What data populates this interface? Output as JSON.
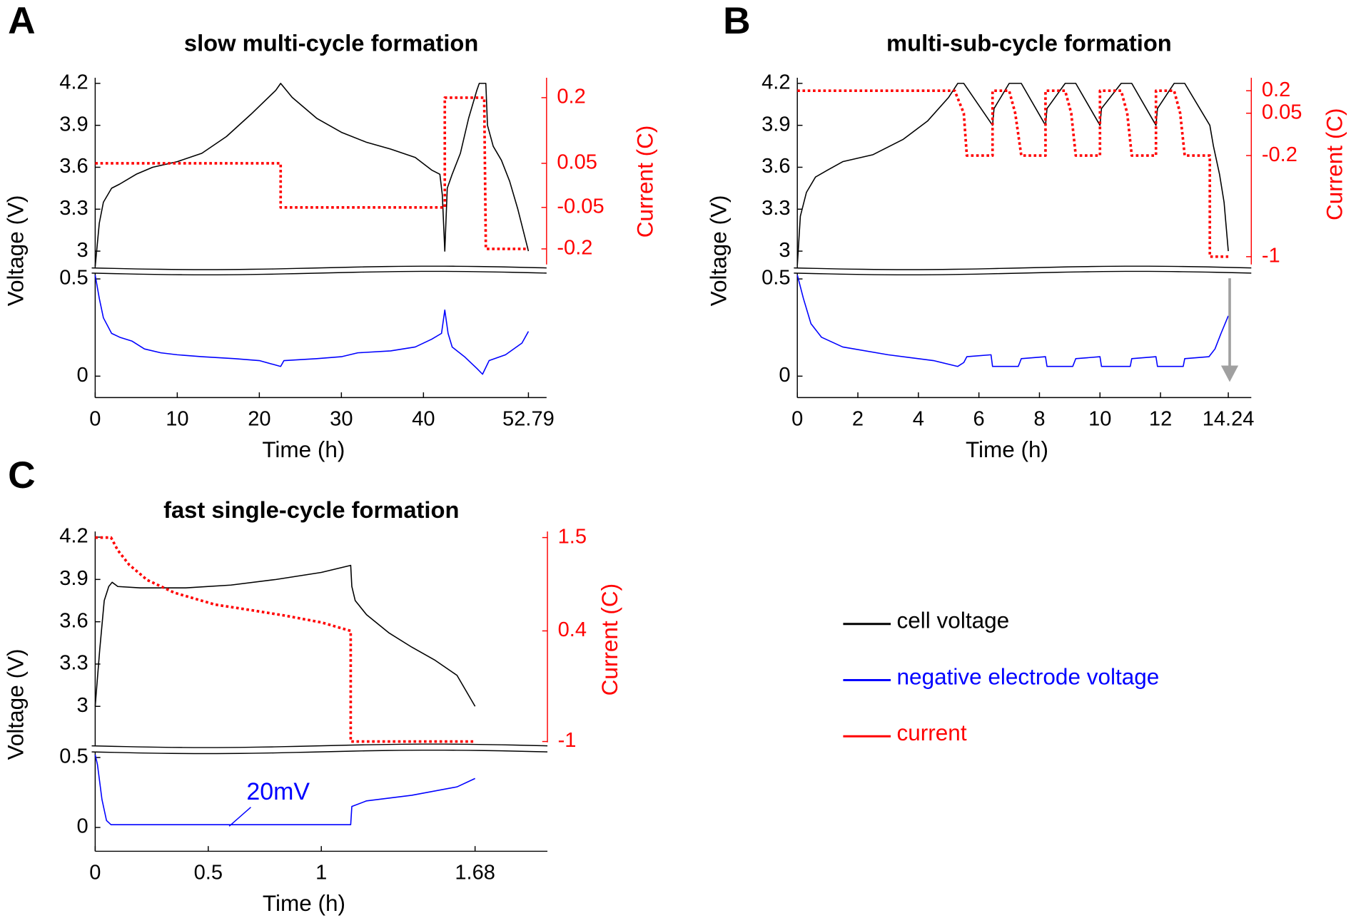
{
  "chart_data": [
    {
      "type": "line",
      "panel": "A",
      "title": "slow multi-cycle formation",
      "xlabel": "Time (h)",
      "ylabel": "Voltage (V)",
      "y2label": "Current (C)",
      "xlim": [
        0,
        55
      ],
      "xticks": [
        0,
        10,
        20,
        30,
        40,
        52.79
      ],
      "ylim": [
        2.88,
        4.24
      ],
      "yticks": [
        3,
        3.3,
        3.6,
        3.9,
        4.2
      ],
      "ylim_lower": [
        -0.11,
        0.53
      ],
      "yticks_lower": [
        0,
        0.5
      ],
      "y2ticks": [
        0.2,
        0.05,
        -0.05,
        -0.2
      ],
      "legend": true,
      "series": [
        {
          "name": "cell voltage",
          "color": "#000000",
          "axis": "y",
          "x": [
            0,
            0.5,
            1,
            2,
            3,
            5,
            7,
            10,
            13,
            16,
            19,
            22,
            22.6,
            24,
            27,
            30,
            33,
            36,
            39,
            41,
            42,
            42.3,
            42.6,
            42.9,
            43.5,
            44.5,
            45.5,
            46.5,
            46.8,
            47.6,
            47.8,
            48.5,
            49.5,
            50.5,
            51.5,
            52.79
          ],
          "values": [
            2.89,
            3.2,
            3.35,
            3.45,
            3.48,
            3.55,
            3.6,
            3.64,
            3.7,
            3.82,
            3.98,
            4.15,
            4.2,
            4.1,
            3.95,
            3.85,
            3.78,
            3.73,
            3.67,
            3.58,
            3.55,
            3.4,
            3.0,
            3.45,
            3.55,
            3.7,
            3.95,
            4.15,
            4.2,
            4.2,
            3.9,
            3.75,
            3.65,
            3.5,
            3.3,
            3.0
          ]
        },
        {
          "name": "negative electrode voltage",
          "color": "#0000ff",
          "axis": "y_lower",
          "x": [
            0,
            0.5,
            1,
            2,
            3,
            4.5,
            6,
            8,
            10,
            13,
            17,
            20,
            22.6,
            23,
            27,
            30,
            32,
            36,
            39,
            41,
            42.2,
            42.6,
            43,
            43.5,
            45,
            46.5,
            47.2,
            48,
            50,
            52,
            52.79
          ],
          "values": [
            0.52,
            0.4,
            0.3,
            0.22,
            0.2,
            0.18,
            0.14,
            0.12,
            0.11,
            0.1,
            0.09,
            0.08,
            0.05,
            0.08,
            0.09,
            0.1,
            0.12,
            0.13,
            0.15,
            0.19,
            0.22,
            0.34,
            0.22,
            0.15,
            0.1,
            0.04,
            0.01,
            0.08,
            0.11,
            0.17,
            0.23
          ]
        },
        {
          "name": "current",
          "color": "#ff0000",
          "axis": "y2",
          "x": [
            0,
            22.6,
            22.6,
            42.6,
            42.6,
            47.4,
            47.6,
            52.79
          ],
          "values": [
            0.05,
            0.05,
            -0.05,
            -0.05,
            0.2,
            0.2,
            -0.2,
            -0.2
          ]
        }
      ]
    },
    {
      "type": "line",
      "panel": "B",
      "title": "multi-sub-cycle formation",
      "xlabel": "Time (h)",
      "ylabel": "Voltage (V)",
      "y2label": "Current (C)",
      "xlim": [
        0,
        15
      ],
      "xticks": [
        0,
        2,
        4,
        6,
        8,
        10,
        12,
        14.24
      ],
      "ylim": [
        2.88,
        4.24
      ],
      "yticks": [
        3,
        3.3,
        3.6,
        3.9,
        4.2
      ],
      "ylim_lower": [
        -0.11,
        0.53
      ],
      "yticks_lower": [
        0,
        0.5
      ],
      "y2ticks": [
        0.2,
        0.05,
        -0.2,
        -1
      ],
      "legend": false,
      "series": [
        {
          "name": "cell voltage",
          "color": "#000000",
          "axis": "y",
          "x": [
            0,
            0.1,
            0.3,
            0.6,
            1,
            1.5,
            2.5,
            3.5,
            4.3,
            5,
            5.3,
            5.5,
            6.45,
            6.5,
            7.0,
            7.4,
            8.2,
            8.25,
            8.85,
            9.2,
            10.0,
            10.05,
            10.7,
            11.05,
            11.85,
            11.9,
            12.45,
            12.8,
            13.63,
            13.75,
            13.95,
            14.1,
            14.24
          ],
          "values": [
            2.9,
            3.25,
            3.42,
            3.53,
            3.58,
            3.64,
            3.69,
            3.8,
            3.93,
            4.1,
            4.2,
            4.2,
            3.9,
            4.02,
            4.2,
            4.2,
            3.9,
            4.02,
            4.2,
            4.2,
            3.9,
            4.02,
            4.2,
            4.2,
            3.9,
            4.02,
            4.2,
            4.2,
            3.9,
            3.75,
            3.55,
            3.35,
            3.0
          ]
        },
        {
          "name": "negative electrode voltage",
          "color": "#0000ff",
          "axis": "y_lower",
          "x": [
            0,
            0.2,
            0.45,
            0.8,
            1.5,
            3,
            4.5,
            5.3,
            5.5,
            5.6,
            6.4,
            6.45,
            7.3,
            7.4,
            8.2,
            8.25,
            9.1,
            9.2,
            10.0,
            10.05,
            11.0,
            11.05,
            11.85,
            11.9,
            12.75,
            12.8,
            13.6,
            13.8,
            14.0,
            14.24
          ],
          "values": [
            0.52,
            0.4,
            0.27,
            0.2,
            0.15,
            0.11,
            0.08,
            0.05,
            0.07,
            0.1,
            0.11,
            0.05,
            0.05,
            0.09,
            0.1,
            0.05,
            0.05,
            0.09,
            0.1,
            0.05,
            0.05,
            0.09,
            0.1,
            0.05,
            0.05,
            0.09,
            0.1,
            0.14,
            0.22,
            0.31
          ]
        },
        {
          "name": "current",
          "color": "#ff0000",
          "axis": "y2",
          "x": [
            0,
            5.2,
            5.4,
            5.5,
            5.6,
            6.45,
            6.45,
            7.0,
            7.2,
            7.4,
            8.2,
            8.2,
            8.85,
            9.05,
            9.2,
            10.0,
            10.0,
            10.7,
            10.9,
            11.05,
            11.85,
            11.85,
            12.45,
            12.65,
            12.8,
            13.63,
            13.63,
            14.24
          ],
          "values": [
            0.2,
            0.2,
            0.1,
            0.05,
            -0.2,
            -0.2,
            0.2,
            0.2,
            0.05,
            -0.2,
            -0.2,
            0.2,
            0.2,
            0.05,
            -0.2,
            -0.2,
            0.2,
            0.2,
            0.05,
            -0.2,
            -0.2,
            0.2,
            0.2,
            0.05,
            -0.2,
            -0.2,
            -1,
            -1
          ]
        }
      ]
    },
    {
      "type": "line",
      "panel": "C",
      "title": "fast single-cycle formation",
      "xlabel": "Time (h)",
      "ylabel": "Voltage (V)",
      "y2label": "Current (C)",
      "xlim": [
        0,
        2
      ],
      "xticks": [
        0,
        0.5,
        1,
        1.68
      ],
      "ylim": [
        2.72,
        4.24
      ],
      "yticks": [
        3,
        3.3,
        3.6,
        3.9,
        4.2
      ],
      "ylim_lower": [
        -0.17,
        0.54
      ],
      "yticks_lower": [
        0,
        0.5
      ],
      "y2ticks": [
        1.5,
        0.4,
        -1
      ],
      "legend": false,
      "annotation": "20mV",
      "series": [
        {
          "name": "cell voltage",
          "color": "#000000",
          "axis": "y",
          "x": [
            0,
            0.02,
            0.04,
            0.06,
            0.075,
            0.1,
            0.2,
            0.4,
            0.6,
            0.8,
            1.0,
            1.13,
            1.135,
            1.15,
            1.2,
            1.3,
            1.4,
            1.5,
            1.6,
            1.68
          ],
          "values": [
            3.0,
            3.4,
            3.75,
            3.85,
            3.88,
            3.85,
            3.84,
            3.84,
            3.86,
            3.9,
            3.95,
            4.0,
            3.85,
            3.75,
            3.65,
            3.52,
            3.42,
            3.33,
            3.22,
            3.0
          ]
        },
        {
          "name": "negative electrode voltage",
          "color": "#0000ff",
          "axis": "y_lower",
          "x": [
            0,
            0.01,
            0.03,
            0.05,
            0.07,
            0.1,
            1.13,
            1.135,
            1.2,
            1.4,
            1.6,
            1.68
          ],
          "values": [
            0.52,
            0.45,
            0.2,
            0.05,
            0.02,
            0.02,
            0.02,
            0.15,
            0.19,
            0.23,
            0.29,
            0.35
          ]
        },
        {
          "name": "current",
          "color": "#ff0000",
          "axis": "y2",
          "x": [
            0,
            0.07,
            0.1,
            0.15,
            0.23,
            0.35,
            0.53,
            0.7,
            0.84,
            1.0,
            1.13,
            1.13,
            1.68
          ],
          "values": [
            1.5,
            1.5,
            1.35,
            1.18,
            1.0,
            0.85,
            0.71,
            0.64,
            0.58,
            0.5,
            0.4,
            -1,
            -1
          ]
        }
      ]
    }
  ]
}
